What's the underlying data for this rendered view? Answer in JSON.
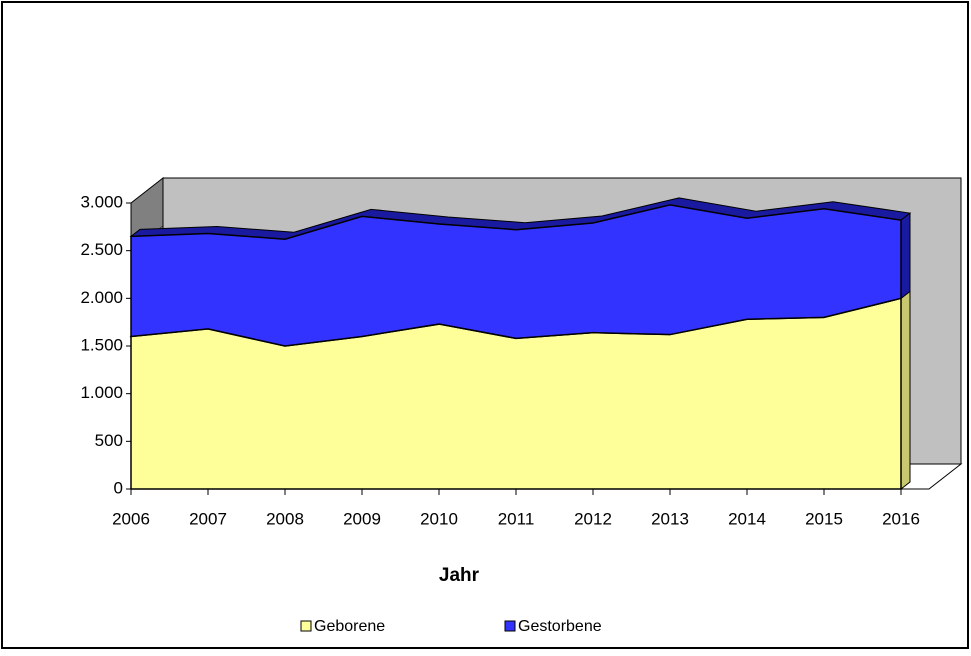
{
  "chart_data": {
    "type": "area3d",
    "x_label": "Jahr",
    "categories": [
      "2006",
      "2007",
      "2008",
      "2009",
      "2010",
      "2011",
      "2012",
      "2013",
      "2014",
      "2015",
      "2016"
    ],
    "series": [
      {
        "name": "Geborene",
        "color": "#ffff99",
        "values": [
          1600,
          1680,
          1500,
          1600,
          1730,
          1580,
          1640,
          1620,
          1780,
          1800,
          2000
        ]
      },
      {
        "name": "Gestorbene",
        "color": "#3333ff",
        "values": [
          1050,
          1000,
          1120,
          1260,
          1050,
          1140,
          1150,
          1360,
          1060,
          1140,
          820
        ]
      }
    ],
    "stacked": true,
    "ylim": [
      0,
      3000
    ],
    "yticks": [
      0,
      500,
      {
        "value": 1000,
        "label": "1.000"
      },
      {
        "value": 1500,
        "label": "1.500"
      },
      {
        "value": 2000,
        "label": "2.000"
      },
      {
        "value": 2500,
        "label": "2.500"
      },
      {
        "value": 3000,
        "label": "3.000"
      }
    ],
    "legend": "bottom"
  }
}
